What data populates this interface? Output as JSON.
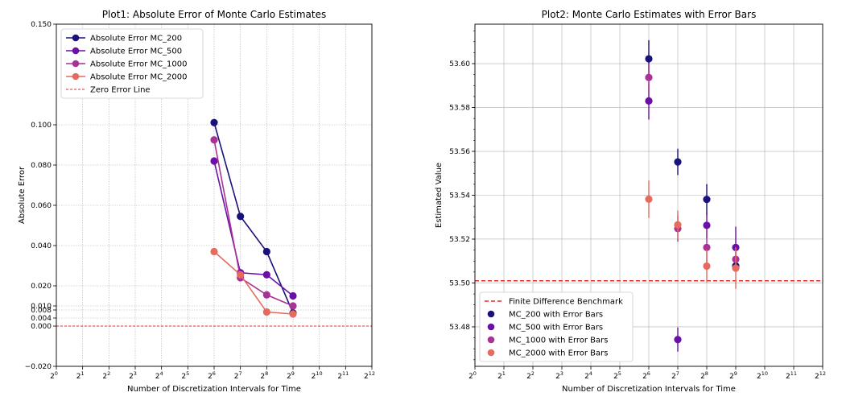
{
  "colors": {
    "MC_200": "#18127a",
    "MC_500": "#6a0fa8",
    "MC_1000": "#a83296",
    "MC_2000": "#e56b5e",
    "reference": "#e03030"
  },
  "chart_data": [
    {
      "type": "line",
      "title": "Plot1: Absolute Error of Monte Carlo Estimates",
      "xlabel": "Number of Discretization Intervals for Time",
      "ylabel": "Absolute Error",
      "xscale": "log2",
      "x_exponents": [
        0,
        12
      ],
      "ylim": [
        -0.02,
        0.15
      ],
      "y_ticks": [
        -0.02,
        0.0,
        0.004,
        0.008,
        0.01,
        0.02,
        0.04,
        0.06,
        0.08,
        0.1,
        0.15
      ],
      "y_tick_labels": [
        "−0.020",
        "0.000",
        "0.004",
        "0.008",
        "0.010",
        "0.020",
        "0.040",
        "0.060",
        "0.080",
        "0.100",
        "0.150"
      ],
      "grid": "dotted",
      "legend_position": "top-left",
      "x": [
        64,
        128,
        256,
        512
      ],
      "series": [
        {
          "name": "Absolute Error MC_200",
          "color_key": "MC_200",
          "values": [
            0.1011,
            0.0545,
            0.037,
            0.0065
          ]
        },
        {
          "name": "Absolute Error MC_500",
          "color_key": "MC_500",
          "values": [
            0.082,
            0.0265,
            0.0255,
            0.015
          ]
        },
        {
          "name": "Absolute Error MC_1000",
          "color_key": "MC_1000",
          "values": [
            0.0925,
            0.024,
            0.0155,
            0.01
          ]
        },
        {
          "name": "Absolute Error MC_2000",
          "color_key": "MC_2000",
          "values": [
            0.037,
            0.0255,
            0.007,
            0.006
          ]
        }
      ],
      "reference_line": {
        "name": "Zero Error Line",
        "value": 0.0,
        "color_key": "reference",
        "style": "dashed"
      }
    },
    {
      "type": "scatter",
      "title": "Plot2: Monte Carlo Estimates with Error Bars",
      "xlabel": "Number of Discretization Intervals for Time",
      "ylabel": "Estimated Value",
      "xscale": "log2",
      "x_exponents": [
        0,
        12
      ],
      "ylim": [
        53.462,
        53.618
      ],
      "y_ticks": [
        53.48,
        53.5,
        53.52,
        53.54,
        53.56,
        53.58,
        53.6
      ],
      "y_tick_labels": [
        "53.48",
        "53.50",
        "53.52",
        "53.54",
        "53.56",
        "53.58",
        "53.60"
      ],
      "grid": "solid",
      "legend_position": "bottom-left",
      "x": [
        64,
        128,
        256,
        512
      ],
      "series": [
        {
          "name": "MC_200 with Error Bars",
          "color_key": "MC_200",
          "values": [
            53.6022,
            53.5552,
            53.5381,
            53.5078
          ],
          "errors": [
            0.0085,
            0.006,
            0.007,
            0.002
          ]
        },
        {
          "name": "MC_500 with Error Bars",
          "color_key": "MC_500",
          "values": [
            53.583,
            53.4742,
            53.5263,
            53.5162
          ],
          "errors": [
            0.0085,
            0.0055,
            0.006,
            0.0095
          ]
        },
        {
          "name": "MC_1000 with Error Bars",
          "color_key": "MC_1000",
          "values": [
            53.5937,
            53.5248,
            53.5162,
            53.5108
          ],
          "errors": [
            0.0065,
            0.006,
            0.008,
            0.0055
          ]
        },
        {
          "name": "MC_2000 with Error Bars",
          "color_key": "MC_2000",
          "values": [
            53.5382,
            53.5265,
            53.5077,
            53.5068
          ],
          "errors": [
            0.0085,
            0.0065,
            0.0075,
            0.0095
          ]
        }
      ],
      "reference_line": {
        "name": "Finite Difference Benchmark",
        "value": 53.501,
        "color_key": "reference",
        "style": "dashed"
      }
    }
  ]
}
